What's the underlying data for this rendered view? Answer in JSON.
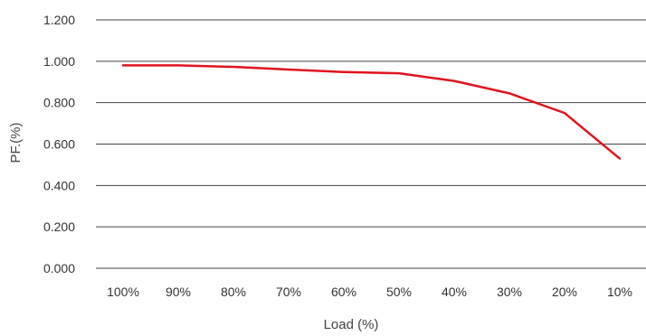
{
  "chart_data": {
    "type": "line",
    "title": "",
    "xlabel": "Load (%)",
    "ylabel": "PF.(%)",
    "categories": [
      "100%",
      "90%",
      "80%",
      "70%",
      "60%",
      "50%",
      "40%",
      "30%",
      "20%",
      "10%"
    ],
    "series": [
      {
        "name": "",
        "values": [
          0.98,
          0.98,
          0.973,
          0.96,
          0.948,
          0.942,
          0.905,
          0.845,
          0.75,
          0.53
        ]
      }
    ],
    "y_ticks": [
      "0.000",
      "0.200",
      "0.400",
      "0.600",
      "0.800",
      "1.000",
      "1.200"
    ],
    "ylim": [
      0,
      1.2
    ],
    "grid": true,
    "legend": "none",
    "colors": {
      "line": "#e0141e",
      "grid": "#444444",
      "text": "#333333"
    }
  }
}
